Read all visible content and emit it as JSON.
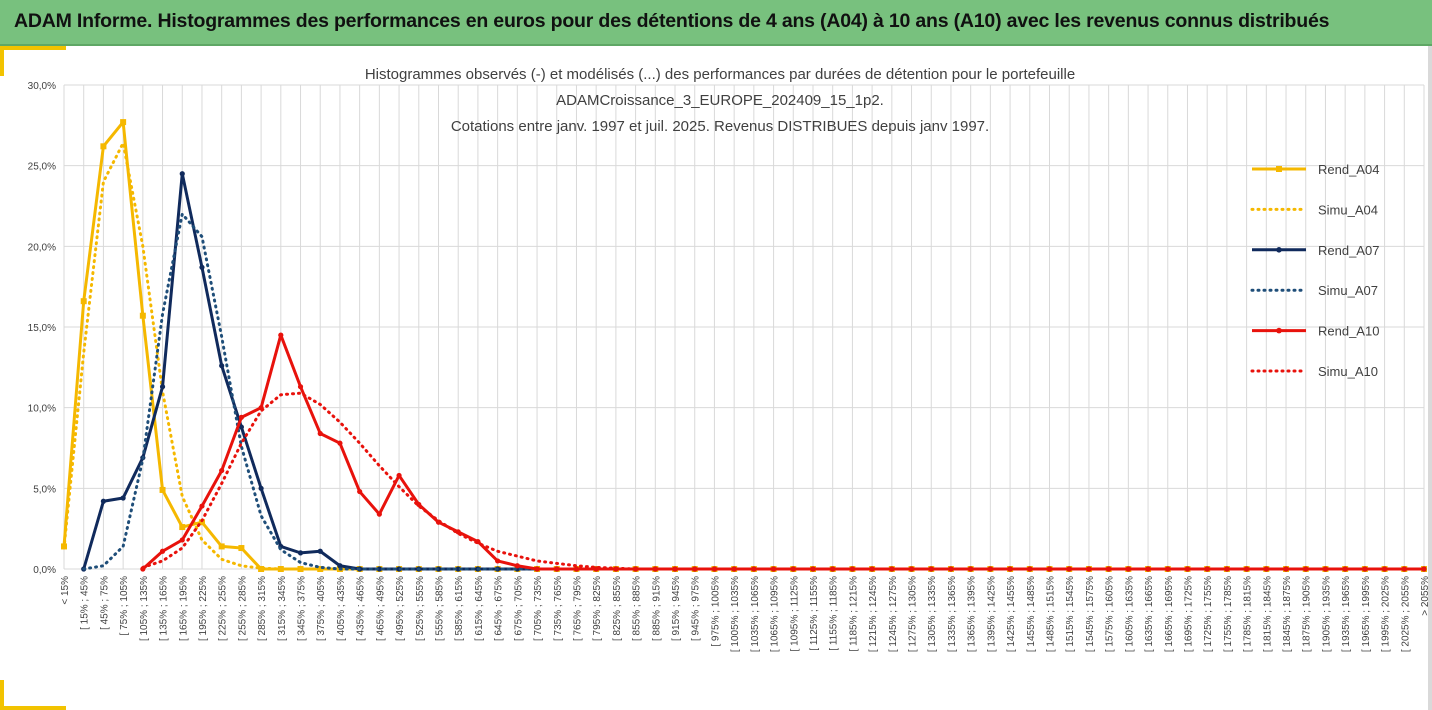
{
  "header": {
    "title": "ADAM Informe. Histogrammes des performances en euros pour des détentions de 4 ans (A04) à 10 ans (A10) avec les revenus connus distribués"
  },
  "colors": {
    "header_bg": "#78c17e",
    "accent_yellow": "#f2c300",
    "A04": "#f5b800",
    "A07": "#102a5c",
    "A10": "#e8120c",
    "grid": "#d9d9d9"
  },
  "chart_data": {
    "type": "line",
    "title_lines": [
      "Histogrammes observés (-) et modélisés (...) des performances par durées de détention pour le portefeuille",
      "ADAMCroissance_3_EUROPE_202409_15_1p2.",
      "Cotations entre janv. 1997 et juil. 2025. Revenus DISTRIBUES depuis janv 1997."
    ],
    "xlabel": "",
    "ylabel": "",
    "ylim": [
      0,
      30
    ],
    "yticks": [
      "0,0%",
      "5,0%",
      "10,0%",
      "15,0%",
      "20,0%",
      "25,0%",
      "30,0%"
    ],
    "grid": "vertical and horizontal",
    "legend_position": "right",
    "categories": [
      "< 15%",
      "[ 15% ; 45%",
      "[ 45% ; 75%",
      "[ 75% ; 105%",
      "[ 105% ; 135%",
      "[ 135% ; 165%",
      "[ 165% ; 195%",
      "[ 195% ; 225%",
      "[ 225% ; 255%",
      "[ 255% ; 285%",
      "[ 285% ; 315%",
      "[ 315% ; 345%",
      "[ 345% ; 375%",
      "[ 375% ; 405%",
      "[ 405% ; 435%",
      "[ 435% ; 465%",
      "[ 465% ; 495%",
      "[ 495% ; 525%",
      "[ 525% ; 555%",
      "[ 555% ; 585%",
      "[ 585% ; 615%",
      "[ 615% ; 645%",
      "[ 645% ; 675%",
      "[ 675% ; 705%",
      "[ 705% ; 735%",
      "[ 735% ; 765%",
      "[ 765% ; 795%",
      "[ 795% ; 825%",
      "[ 825% ; 855%",
      "[ 855% ; 885%",
      "[ 885% ; 915%",
      "[ 915% ; 945%",
      "[ 945% ; 975%",
      "[ 975% ; 1005%",
      "[ 1005% ; 1035%",
      "[ 1035% ; 1065%",
      "[ 1065% ; 1095%",
      "[ 1095% ; 1125%",
      "[ 1125% ; 1155%",
      "[ 1155% ; 1185%",
      "[ 1185% ; 1215%",
      "[ 1215% ; 1245%",
      "[ 1245% ; 1275%",
      "[ 1275% ; 1305%",
      "[ 1305% ; 1335%",
      "[ 1335% ; 1365%",
      "[ 1365% ; 1395%",
      "[ 1395% ; 1425%",
      "[ 1425% ; 1455%",
      "[ 1455% ; 1485%",
      "[ 1485% ; 1515%",
      "[ 1515% ; 1545%",
      "[ 1545% ; 1575%",
      "[ 1575% ; 1605%",
      "[ 1605% ; 1635%",
      "[ 1635% ; 1665%",
      "[ 1665% ; 1695%",
      "[ 1695% ; 1725%",
      "[ 1725% ; 1755%",
      "[ 1755% ; 1785%",
      "[ 1785% ; 1815%",
      "[ 1815% ; 1845%",
      "[ 1845% ; 1875%",
      "[ 1875% ; 1905%",
      "[ 1905% ; 1935%",
      "[ 1935% ; 1965%",
      "[ 1965% ; 1995%",
      "[ 1995% ; 2025%",
      "[ 2025% ; 2055%",
      "> 2055%"
    ],
    "series": [
      {
        "name": "Rend_A04",
        "style": "solid",
        "markers": "square",
        "color": "#f5b800",
        "values": [
          1.4,
          16.6,
          26.2,
          27.7,
          15.7,
          4.9,
          2.6,
          2.9,
          1.4,
          1.3,
          0.0,
          0.0,
          0.0,
          0.0,
          0.0,
          0.0,
          0.0,
          0.0,
          0.0,
          0.0,
          0.0,
          0.0,
          0.0,
          0.0,
          0.0,
          0.0,
          0.0,
          0.0,
          0.0,
          0.0,
          0.0,
          0.0,
          0.0,
          0.0,
          0.0,
          0.0,
          0.0,
          0.0,
          0.0,
          0.0,
          0.0,
          0.0,
          0.0,
          0.0,
          0.0,
          0.0,
          0.0,
          0.0,
          0.0,
          0.0,
          0.0,
          0.0,
          0.0,
          0.0,
          0.0,
          0.0,
          0.0,
          0.0,
          0.0,
          0.0,
          0.0,
          0.0,
          0.0,
          0.0,
          0.0,
          0.0,
          0.0,
          0.0,
          0.0,
          0.0
        ]
      },
      {
        "name": "Simu_A04",
        "style": "dotted",
        "markers": "none",
        "color": "#f5b800",
        "values": [
          1.3,
          13.4,
          24.0,
          26.4,
          20.0,
          11.0,
          4.5,
          1.8,
          0.6,
          0.2,
          0.05,
          0,
          0,
          0,
          0,
          0,
          0,
          0,
          0,
          0,
          0,
          0,
          0,
          0,
          0,
          0,
          0,
          0,
          0,
          0,
          0,
          0,
          0,
          0,
          0,
          0,
          0,
          0,
          0,
          0,
          0,
          0,
          0,
          0,
          0,
          0,
          0,
          0,
          0,
          0,
          0,
          0,
          0,
          0,
          0,
          0,
          0,
          0,
          0,
          0,
          0,
          0,
          0,
          0,
          0,
          0,
          0,
          0,
          0,
          0
        ]
      },
      {
        "name": "Rend_A07",
        "style": "solid",
        "markers": "circle",
        "color": "#102a5c",
        "values": [
          null,
          0.0,
          4.2,
          4.4,
          6.9,
          11.3,
          24.5,
          18.7,
          12.6,
          8.8,
          5.0,
          1.4,
          1.0,
          1.1,
          0.2,
          0.0,
          0.0,
          0.0,
          0.0,
          0.0,
          0.0,
          0.0,
          0.0,
          0.0,
          0.0,
          0.0,
          0.0,
          0.0,
          0.0,
          0.0,
          0.0,
          0.0,
          0.0,
          0.0,
          0.0,
          0.0,
          0.0,
          0.0,
          0.0,
          0.0,
          0.0,
          0.0,
          0.0,
          0.0,
          0.0,
          0.0,
          0.0,
          0.0,
          0.0,
          0.0,
          0.0,
          0.0,
          0.0,
          0.0,
          0.0,
          0.0,
          0.0,
          0.0,
          0.0,
          0.0,
          0.0,
          0.0,
          0.0,
          0.0,
          0.0,
          0.0,
          0.0,
          0.0,
          0.0,
          0.0
        ]
      },
      {
        "name": "Simu_A07",
        "style": "dotted",
        "markers": "none",
        "color": "#1f4e79",
        "values": [
          null,
          0.0,
          0.2,
          1.4,
          6.8,
          15.8,
          22.0,
          20.6,
          14.4,
          7.6,
          3.3,
          1.2,
          0.4,
          0.1,
          0,
          0,
          0,
          0,
          0,
          0,
          0,
          0,
          0,
          0,
          0,
          0,
          0,
          0,
          0,
          0,
          0,
          0,
          0,
          0,
          0,
          0,
          0,
          0,
          0,
          0,
          0,
          0,
          0,
          0,
          0,
          0,
          0,
          0,
          0,
          0,
          0,
          0,
          0,
          0,
          0,
          0,
          0,
          0,
          0,
          0,
          0,
          0,
          0,
          0,
          0,
          0,
          0,
          0,
          0,
          0
        ]
      },
      {
        "name": "Rend_A10",
        "style": "solid",
        "markers": "circle",
        "color": "#e8120c",
        "values": [
          null,
          null,
          null,
          null,
          0.0,
          1.1,
          1.8,
          3.9,
          6.1,
          9.4,
          10.0,
          14.5,
          11.3,
          8.4,
          7.8,
          4.8,
          3.4,
          5.8,
          4.0,
          2.9,
          2.3,
          1.7,
          0.5,
          0.2,
          0.0,
          0.0,
          0.0,
          0.0,
          0.0,
          0.0,
          0.0,
          0.0,
          0.0,
          0.0,
          0.0,
          0.0,
          0.0,
          0.0,
          0.0,
          0.0,
          0.0,
          0.0,
          0.0,
          0.0,
          0.0,
          0.0,
          0.0,
          0.0,
          0.0,
          0.0,
          0.0,
          0.0,
          0.0,
          0.0,
          0.0,
          0.0,
          0.0,
          0.0,
          0.0,
          0.0,
          0.0,
          0.0,
          0.0,
          0.0,
          0.0,
          0.0,
          0.0,
          0.0,
          0.0,
          0.0
        ]
      },
      {
        "name": "Simu_A10",
        "style": "dotted",
        "markers": "none",
        "color": "#e8120c",
        "values": [
          null,
          null,
          null,
          null,
          0.1,
          0.5,
          1.3,
          3.0,
          5.3,
          7.8,
          9.8,
          10.8,
          10.9,
          10.2,
          9.1,
          7.8,
          6.4,
          5.1,
          3.9,
          3.0,
          2.2,
          1.6,
          1.1,
          0.8,
          0.5,
          0.35,
          0.2,
          0.1,
          0.05,
          0,
          0,
          0,
          0,
          0,
          0,
          0,
          0,
          0,
          0,
          0,
          0,
          0,
          0,
          0,
          0,
          0,
          0,
          0,
          0,
          0,
          0,
          0,
          0,
          0,
          0,
          0,
          0,
          0,
          0,
          0,
          0,
          0,
          0,
          0,
          0,
          0,
          0,
          0,
          0,
          0
        ]
      }
    ]
  }
}
